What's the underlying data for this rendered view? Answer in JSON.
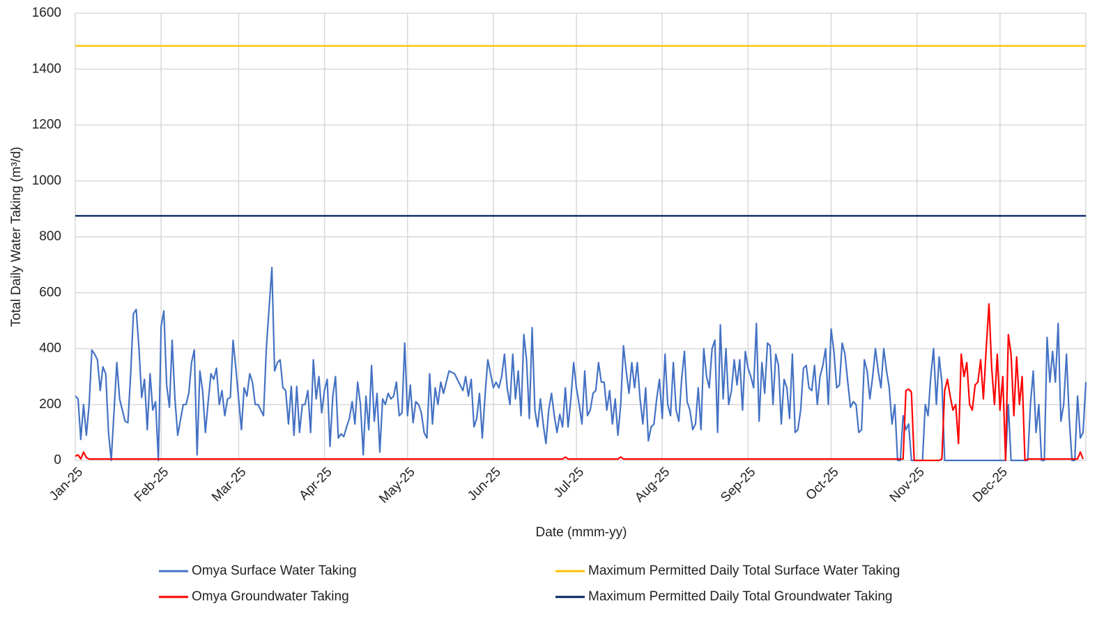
{
  "chart_data": {
    "type": "line",
    "x_label": "Date (mmm-yy)",
    "y_label": "Total Daily Water Taking (m³/d)",
    "xlim": [
      0,
      365
    ],
    "ylim": [
      0,
      1600
    ],
    "yticks": [
      0,
      200,
      400,
      600,
      800,
      1000,
      1200,
      1400,
      1600
    ],
    "xticks": [
      {
        "value": 0,
        "label": "Jan-25"
      },
      {
        "value": 31,
        "label": "Feb-25"
      },
      {
        "value": 59,
        "label": "Mar-25"
      },
      {
        "value": 90,
        "label": "Apr-25"
      },
      {
        "value": 120,
        "label": "May-25"
      },
      {
        "value": 151,
        "label": "Jun-25"
      },
      {
        "value": 181,
        "label": "Jul-25"
      },
      {
        "value": 212,
        "label": "Aug-25"
      },
      {
        "value": 243,
        "label": "Sep-25"
      },
      {
        "value": 273,
        "label": "Oct-25"
      },
      {
        "value": 304,
        "label": "Nov-25"
      },
      {
        "value": 334,
        "label": "Dec-25"
      }
    ],
    "grid": true,
    "legend": "bottom",
    "series": [
      {
        "name": "Omya Surface Water Taking",
        "color": "#4472c4",
        "x": [
          0,
          1,
          2,
          3,
          4,
          5,
          6,
          7,
          8,
          9,
          10,
          11,
          12,
          13,
          15,
          16,
          18,
          19,
          20,
          21,
          22,
          23,
          24,
          25,
          26,
          27,
          28,
          29,
          30,
          31,
          32,
          33,
          34,
          35,
          36,
          37,
          39,
          40,
          41,
          42,
          43,
          44,
          45,
          46,
          47,
          48,
          49,
          50,
          51,
          52,
          53,
          54,
          55,
          56,
          57,
          58,
          59,
          60,
          61,
          62,
          63,
          64,
          65,
          66,
          67,
          68,
          69,
          71,
          72,
          73,
          74,
          75,
          76,
          77,
          78,
          79,
          80,
          81,
          82,
          83,
          84,
          85,
          86,
          87,
          88,
          89,
          90,
          91,
          92,
          93,
          94,
          95,
          96,
          97,
          98,
          99,
          100,
          101,
          102,
          103,
          104,
          105,
          106,
          107,
          108,
          109,
          110,
          111,
          112,
          113,
          114,
          115,
          116,
          117,
          118,
          119,
          120,
          121,
          122,
          123,
          124,
          125,
          126,
          127,
          128,
          129,
          130,
          131,
          132,
          133,
          134,
          135,
          137,
          139,
          140,
          141,
          142,
          143,
          144,
          145,
          146,
          147,
          148,
          149,
          150,
          151,
          152,
          153,
          154,
          155,
          156,
          157,
          158,
          159,
          160,
          161,
          162,
          163,
          164,
          165,
          166,
          167,
          168,
          169,
          170,
          171,
          172,
          173,
          174,
          175,
          176,
          177,
          178,
          179,
          180,
          181,
          182,
          183,
          184,
          185,
          186,
          187,
          188,
          189,
          190,
          191,
          192,
          193,
          194,
          195,
          196,
          197,
          198,
          199,
          200,
          201,
          202,
          203,
          204,
          205,
          206,
          207,
          208,
          209,
          210,
          211,
          212,
          213,
          214,
          215,
          216,
          217,
          218,
          219,
          220,
          221,
          222,
          223,
          224,
          225,
          226,
          227,
          228,
          229,
          230,
          231,
          232,
          233,
          234,
          235,
          236,
          237,
          238,
          239,
          240,
          241,
          242,
          243,
          244,
          245,
          246,
          247,
          248,
          249,
          250,
          251,
          252,
          253,
          254,
          255,
          256,
          257,
          258,
          259,
          260,
          261,
          262,
          263,
          264,
          265,
          266,
          267,
          268,
          269,
          270,
          271,
          272,
          273,
          274,
          275,
          276,
          277,
          278,
          279,
          280,
          281,
          282,
          283,
          284,
          285,
          286,
          287,
          288,
          289,
          290,
          291,
          292,
          293,
          294,
          295,
          296,
          297,
          298,
          299,
          300,
          301,
          302,
          306,
          307,
          308,
          309,
          310,
          311,
          312,
          313,
          314,
          336,
          337,
          338,
          344,
          345,
          346,
          347,
          348,
          349,
          350,
          351,
          352,
          353,
          354,
          355,
          356,
          357,
          358,
          359,
          360,
          361,
          362,
          363,
          364,
          365
        ],
        "values": [
          230,
          220,
          75,
          200,
          90,
          200,
          395,
          380,
          360,
          250,
          335,
          310,
          100,
          0,
          350,
          220,
          140,
          135,
          310,
          525,
          540,
          400,
          225,
          290,
          110,
          310,
          180,
          210,
          0,
          480,
          535,
          270,
          190,
          430,
          220,
          90,
          200,
          200,
          240,
          350,
          395,
          20,
          320,
          250,
          100,
          210,
          310,
          290,
          330,
          200,
          250,
          160,
          220,
          225,
          430,
          330,
          220,
          110,
          260,
          230,
          310,
          280,
          200,
          200,
          180,
          160,
          400,
          690,
          320,
          350,
          360,
          260,
          250,
          130,
          265,
          90,
          265,
          100,
          200,
          200,
          250,
          100,
          360,
          220,
          300,
          170,
          250,
          290,
          50,
          230,
          300,
          80,
          95,
          85,
          120,
          150,
          210,
          130,
          280,
          200,
          20,
          230,
          110,
          340,
          140,
          240,
          30,
          220,
          200,
          240,
          220,
          230,
          280,
          160,
          170,
          420,
          160,
          270,
          135,
          210,
          200,
          170,
          100,
          80,
          310,
          130,
          260,
          200,
          280,
          240,
          280,
          320,
          310,
          270,
          250,
          300,
          230,
          290,
          120,
          150,
          240,
          80,
          230,
          360,
          310,
          260,
          280,
          260,
          300,
          380,
          260,
          200,
          380,
          220,
          320,
          160,
          450,
          360,
          150,
          475,
          180,
          120,
          220,
          130,
          60,
          180,
          240,
          160,
          100,
          165,
          120,
          260,
          120,
          220,
          350,
          260,
          200,
          130,
          320,
          160,
          180,
          240,
          250,
          350,
          280,
          280,
          180,
          250,
          130,
          220,
          90,
          200,
          410,
          320,
          240,
          350,
          260,
          350,
          220,
          130,
          260,
          70,
          120,
          130,
          220,
          290,
          150,
          380,
          200,
          160,
          350,
          180,
          140,
          290,
          390,
          210,
          180,
          110,
          130,
          260,
          110,
          400,
          300,
          260,
          400,
          430,
          100,
          485,
          220,
          400,
          200,
          250,
          360,
          270,
          360,
          180,
          390,
          330,
          300,
          260,
          490,
          140,
          350,
          240,
          420,
          410,
          200,
          380,
          340,
          130,
          290,
          260,
          150,
          380,
          100,
          110,
          180,
          330,
          340,
          260,
          250,
          340,
          200,
          300,
          340,
          400,
          200,
          470,
          390,
          260,
          270,
          420,
          380,
          280,
          190,
          210,
          200,
          100,
          110,
          360,
          320,
          220,
          300,
          400,
          320,
          260,
          400,
          320,
          260,
          130,
          200,
          0,
          0,
          160,
          110,
          130,
          0,
          0,
          200,
          160,
          300,
          400,
          200,
          370,
          280,
          0,
          0,
          200,
          0,
          0,
          200,
          320,
          100,
          200,
          0,
          0,
          440,
          280,
          390,
          280,
          490,
          140,
          200,
          380,
          150,
          0,
          0,
          230,
          80,
          100,
          280
        ]
      },
      {
        "name": "Omya Groundwater Taking",
        "color": "#ff0000",
        "x": [
          0,
          1,
          2,
          3,
          4,
          5,
          176,
          177,
          178,
          196,
          197,
          198,
          299,
          300,
          301,
          302,
          303,
          312,
          313,
          314,
          315,
          316,
          317,
          318,
          319,
          320,
          321,
          322,
          323,
          324,
          325,
          326,
          327,
          328,
          329,
          330,
          331,
          332,
          333,
          334,
          335,
          336,
          337,
          338,
          339,
          340,
          341,
          342,
          343,
          344,
          362,
          363,
          364
        ],
        "values": [
          15,
          20,
          5,
          30,
          10,
          5,
          5,
          12,
          5,
          5,
          12,
          5,
          5,
          250,
          255,
          245,
          0,
          0,
          5,
          250,
          290,
          230,
          180,
          200,
          60,
          380,
          300,
          350,
          200,
          180,
          270,
          280,
          360,
          220,
          400,
          560,
          330,
          200,
          380,
          180,
          300,
          0,
          450,
          380,
          160,
          370,
          200,
          300,
          0,
          5,
          5,
          30,
          5
        ]
      },
      {
        "name": "Maximum Permitted Daily Total Surface Water Taking",
        "color": "#ffc000",
        "x": [
          0,
          365
        ],
        "values": [
          1483,
          1483
        ]
      },
      {
        "name": "Maximum Permitted Daily Total Groundwater Taking",
        "color": "#002060",
        "x": [
          0,
          365
        ],
        "values": [
          875,
          875
        ]
      }
    ]
  }
}
